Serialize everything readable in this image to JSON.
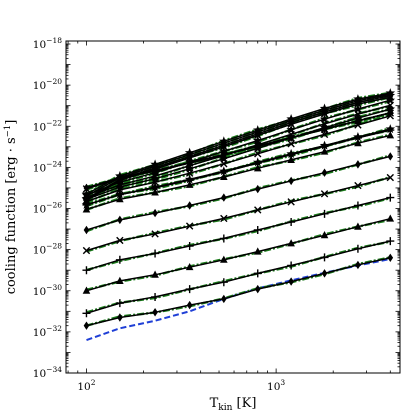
{
  "chart_data": {
    "type": "line",
    "title": "",
    "xlabel": {
      "main": "T",
      "sub": "kin",
      "rest": " [K]"
    },
    "ylabel": {
      "main": "cooling function [erg · s",
      "sup": "−1",
      "rest": "]"
    },
    "xscale": "log",
    "yscale": "log",
    "xlim": [
      78,
      4500
    ],
    "ylim": [
      1e-34,
      1.4e-18
    ],
    "x_ticks": [
      {
        "value": 100,
        "base": "10",
        "exp": "2"
      },
      {
        "value": 1000,
        "base": "10",
        "exp": "3"
      }
    ],
    "y_ticks": [
      {
        "value": 1e-18,
        "base": "10",
        "exp": "−18"
      },
      {
        "value": 1e-20,
        "base": "10",
        "exp": "−20"
      },
      {
        "value": 1e-22,
        "base": "10",
        "exp": "−22"
      },
      {
        "value": 1e-24,
        "base": "10",
        "exp": "−24"
      },
      {
        "value": 1e-26,
        "base": "10",
        "exp": "−26"
      },
      {
        "value": 1e-28,
        "base": "10",
        "exp": "−28"
      },
      {
        "value": 1e-30,
        "base": "10",
        "exp": "−30"
      },
      {
        "value": 1e-32,
        "base": "10",
        "exp": "−32"
      },
      {
        "value": 1e-34,
        "base": "10",
        "exp": "−34"
      }
    ],
    "grid": false,
    "legend": "none",
    "colors": {
      "model": "#000000",
      "fit": "#1a7a1a",
      "reference": "#1f3fd6"
    },
    "x": [
      100,
      150,
      230,
      350,
      530,
      800,
      1200,
      1800,
      2700,
      4000
    ],
    "series": [
      {
        "values": [
          2e-32,
          5e-32,
          9e-32,
          2e-31,
          4e-31,
          1.2e-30,
          2.8e-30,
          7e-30,
          1.8e-29,
          4e-29
        ],
        "marker": "diamond"
      },
      {
        "values": [
          8e-32,
          2.5e-31,
          5e-31,
          1.2e-30,
          2.6e-30,
          7e-30,
          1.7e-29,
          4.2e-29,
          1.1e-28,
          2.6e-28
        ],
        "marker": "plus"
      },
      {
        "values": [
          1e-30,
          3e-30,
          6e-30,
          1.4e-29,
          3.2e-29,
          8e-29,
          2e-28,
          5e-28,
          1.3e-27,
          3.2e-27
        ],
        "marker": "triangle"
      },
      {
        "values": [
          1e-29,
          3.2e-29,
          6.5e-29,
          1.5e-28,
          3.5e-28,
          9e-28,
          2.2e-27,
          5.5e-27,
          1.4e-26,
          3.4e-26
        ],
        "marker": "plus"
      },
      {
        "values": [
          9e-29,
          2.8e-28,
          5.8e-28,
          1.4e-27,
          3.3e-27,
          8.5e-27,
          2.1e-26,
          5.2e-26,
          1.3e-25,
          3.2e-25
        ],
        "marker": "x"
      },
      {
        "values": [
          9e-28,
          2.8e-27,
          6e-27,
          1.4e-26,
          3.4e-26,
          8.8e-26,
          2.2e-25,
          5.5e-25,
          1.4e-24,
          3.4e-24
        ],
        "marker": "diamond"
      },
      {
        "values": [
          9e-27,
          2.8e-26,
          6e-26,
          1.4e-25,
          3.4e-25,
          9e-25,
          2.3e-24,
          5.8e-24,
          1.5e-23,
          3.6e-23
        ],
        "marker": "triangle"
      },
      {
        "values": [
          1.5e-26,
          4.8e-26,
          1e-25,
          2.4e-25,
          6e-25,
          1.6e-24,
          4.1e-24,
          1.05e-23,
          2.7e-23,
          6.5e-23
        ],
        "marker": "plus"
      },
      {
        "values": [
          1e-25,
          3.2e-25,
          7e-25,
          1.7e-24,
          4.2e-24,
          1.1e-23,
          2.8e-23,
          7.2e-23,
          1.85e-22,
          4.5e-22
        ],
        "marker": "diamond"
      },
      {
        "values": [
          1e-25,
          3.2e-25,
          7e-25,
          1.7e-24,
          4.2e-24,
          1.1e-23,
          2.8e-23,
          7.2e-23,
          1.85e-22,
          4.5e-22
        ],
        "marker": "diamond"
      },
      {
        "values": [
          9e-26,
          3e-25,
          6.5e-25,
          1.6e-24,
          4e-24,
          1.05e-23,
          2.7e-23,
          7e-23,
          1.8e-22,
          4.4e-22
        ],
        "marker": "x"
      },
      {
        "values": [
          1.5e-26,
          4.8e-26,
          1.1e-25,
          2.6e-25,
          6.5e-25,
          1.75e-24,
          4.5e-24,
          1.15e-23,
          3e-23,
          7.3e-23
        ],
        "marker": "star"
      },
      {
        "values": [
          2.2e-26,
          8e-26,
          1.9e-25,
          5.2e-25,
          1.5e-24,
          4.6e-24,
          1.4e-23,
          4e-23,
          1.15e-22,
          3.2e-22
        ],
        "marker": "x"
      },
      {
        "values": [
          2.8e-26,
          1.1e-25,
          2.8e-25,
          8.5e-25,
          2.6e-24,
          8.5e-24,
          2.7e-23,
          8.5e-23,
          2.5e-22,
          6.8e-22
        ],
        "marker": "star"
      },
      {
        "values": [
          3.5e-26,
          1.4e-25,
          3.8e-25,
          1.2e-24,
          3.8e-24,
          1.25e-23,
          4e-23,
          1.3e-22,
          3.9e-22,
          1.05e-21
        ],
        "marker": "x"
      },
      {
        "values": [
          4.5e-26,
          1.9e-25,
          5.5e-25,
          1.8e-24,
          6e-24,
          2e-23,
          6.8e-23,
          2.2e-22,
          6.8e-22,
          1.85e-21
        ],
        "marker": "star"
      },
      {
        "values": [
          2.5e-26,
          2.3e-25,
          8.2e-25,
          2.9e-24,
          1e-23,
          3.6e-23,
          1.25e-22,
          4e-22,
          1.2e-21,
          2.6e-21
        ],
        "marker": "x"
      },
      {
        "values": [
          3e-26,
          2.6e-25,
          9.5e-25,
          3.4e-24,
          1.2e-23,
          4.3e-23,
          1.5e-22,
          4.9e-22,
          1.45e-21,
          3.1e-21
        ],
        "marker": "star"
      },
      {
        "values": [
          4e-26,
          3.2e-25,
          1.15e-24,
          4.2e-24,
          1.5e-23,
          5.3e-23,
          1.85e-22,
          6e-22,
          1.75e-21,
          3.6e-21
        ],
        "marker": "diamond"
      },
      {
        "values": [
          5e-26,
          3.8e-25,
          1.4e-24,
          5.1e-24,
          1.85e-23,
          6.5e-23,
          2.25e-22,
          7.3e-22,
          2.1e-21,
          4.1e-21
        ],
        "marker": "star"
      }
    ],
    "reference": {
      "values": [
        4e-33,
        1.5e-32,
        3.5e-32,
        1e-31,
        4e-31,
        1.3e-30,
        3.2e-30,
        7.5e-30,
        1.7e-29,
        3.5e-29
      ]
    }
  }
}
